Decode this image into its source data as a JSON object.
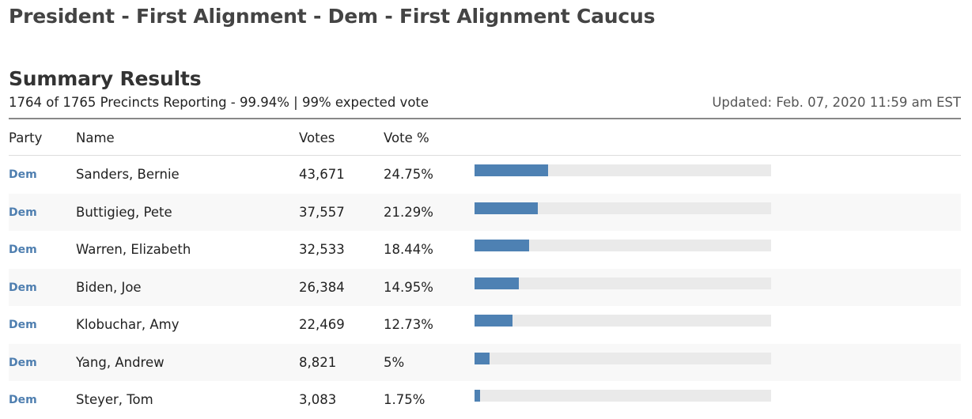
{
  "page": {
    "title": "President - First Alignment - Dem - First Alignment Caucus"
  },
  "summary": {
    "title": "Summary Results",
    "reporting": "1764 of 1765 Precincts Reporting - 99.94% | 99% expected vote",
    "updated": "Updated: Feb. 07, 2020 11:59 am EST"
  },
  "table": {
    "headers": {
      "party": "Party",
      "name": "Name",
      "votes": "Votes",
      "pct": "Vote %"
    },
    "rows": [
      {
        "party": "Dem",
        "name": "Sanders, Bernie",
        "votes": "43,671",
        "pct": "24.75%",
        "share": 24.75
      },
      {
        "party": "Dem",
        "name": "Buttigieg, Pete",
        "votes": "37,557",
        "pct": "21.29%",
        "share": 21.29
      },
      {
        "party": "Dem",
        "name": "Warren, Elizabeth",
        "votes": "32,533",
        "pct": "18.44%",
        "share": 18.44
      },
      {
        "party": "Dem",
        "name": "Biden, Joe",
        "votes": "26,384",
        "pct": "14.95%",
        "share": 14.95
      },
      {
        "party": "Dem",
        "name": "Klobuchar, Amy",
        "votes": "22,469",
        "pct": "12.73%",
        "share": 12.73
      },
      {
        "party": "Dem",
        "name": "Yang, Andrew",
        "votes": "8,821",
        "pct": "5%",
        "share": 5.0
      },
      {
        "party": "Dem",
        "name": "Steyer, Tom",
        "votes": "3,083",
        "pct": "1.75%",
        "share": 1.75
      }
    ]
  },
  "colors": {
    "bar": "#4e81b3",
    "track": "#eaeaea",
    "party": "#4f7fb0"
  }
}
